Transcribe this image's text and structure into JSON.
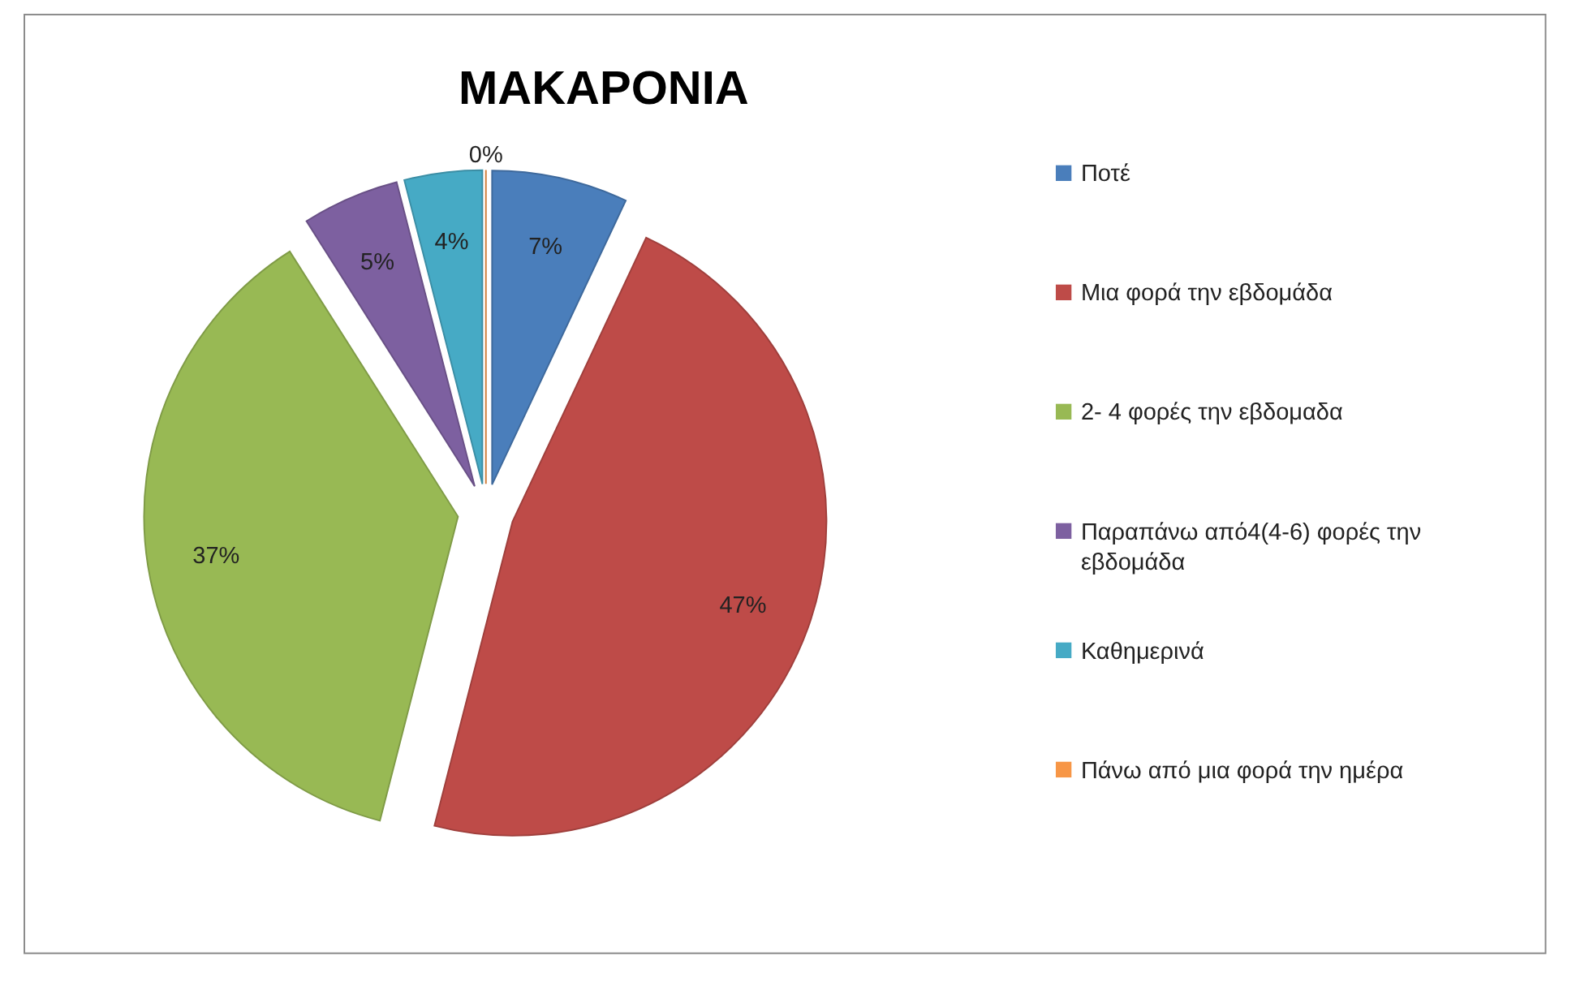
{
  "chart_data": {
    "type": "pie",
    "title": "ΜΑΚΑΡΟΝΙΑ",
    "categories": [
      "Ποτέ",
      "Μια φορά την εβδομάδα",
      "2- 4 φορές την εβδομαδα",
      "Παραπάνω από4(4-6) φορές την εβδομάδα",
      "Καθημερινά",
      "Πάνω από μια φορά την ημέρα"
    ],
    "values": [
      7,
      47,
      37,
      5,
      4,
      0
    ],
    "value_labels": [
      "7%",
      "47%",
      "37%",
      "5%",
      "4%",
      "0%"
    ],
    "colors": [
      "#4a7ebb",
      "#be4b48",
      "#98b954",
      "#7d60a0",
      "#46aac5",
      "#f79646"
    ],
    "legend": "right"
  }
}
